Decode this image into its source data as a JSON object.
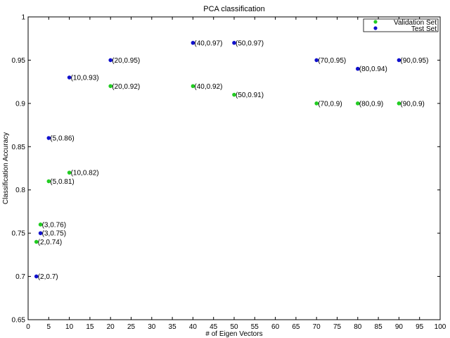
{
  "chart_data": {
    "type": "scatter",
    "title": "PCA classification",
    "xlabel": "# of Eigen Vectors",
    "ylabel": "Classification Accuracy",
    "xlim": [
      0,
      100
    ],
    "ylim": [
      0.65,
      1.0
    ],
    "xticks": [
      0,
      5,
      10,
      15,
      20,
      25,
      30,
      35,
      40,
      45,
      50,
      55,
      60,
      65,
      70,
      75,
      80,
      85,
      90,
      95,
      100
    ],
    "yticks": [
      0.65,
      0.7,
      0.75,
      0.8,
      0.85,
      0.9,
      0.95,
      1.0
    ],
    "ytick_labels": [
      "0.65",
      "0.7",
      "0.75",
      "0.8",
      "0.85",
      "0.9",
      "0.95",
      "1"
    ],
    "grid": false,
    "legend_position": "top-right",
    "series": [
      {
        "name": "Validation Set",
        "color": "#22cc22",
        "points": [
          {
            "x": 2,
            "y": 0.74,
            "label": "(2,0.74)"
          },
          {
            "x": 3,
            "y": 0.76,
            "label": "(3,0.76)"
          },
          {
            "x": 5,
            "y": 0.81,
            "label": "(5,0.81)"
          },
          {
            "x": 10,
            "y": 0.82,
            "label": "(10,0.82)"
          },
          {
            "x": 20,
            "y": 0.92,
            "label": "(20,0.92)"
          },
          {
            "x": 40,
            "y": 0.92,
            "label": "(40,0.92)"
          },
          {
            "x": 50,
            "y": 0.91,
            "label": "(50,0.91)"
          },
          {
            "x": 70,
            "y": 0.9,
            "label": "(70,0.9)"
          },
          {
            "x": 80,
            "y": 0.9,
            "label": "(80,0.9)"
          },
          {
            "x": 90,
            "y": 0.9,
            "label": "(90,0.9)"
          }
        ]
      },
      {
        "name": "Test Set",
        "color": "#1010cc",
        "points": [
          {
            "x": 2,
            "y": 0.7,
            "label": "(2,0.7)"
          },
          {
            "x": 3,
            "y": 0.75,
            "label": "(3,0.75)"
          },
          {
            "x": 5,
            "y": 0.86,
            "label": "(5,0.86)"
          },
          {
            "x": 10,
            "y": 0.93,
            "label": "(10,0.93)"
          },
          {
            "x": 20,
            "y": 0.95,
            "label": "(20,0.95)"
          },
          {
            "x": 40,
            "y": 0.97,
            "label": "(40,0.97)"
          },
          {
            "x": 50,
            "y": 0.97,
            "label": "(50,0.97)"
          },
          {
            "x": 70,
            "y": 0.95,
            "label": "(70,0.95)"
          },
          {
            "x": 80,
            "y": 0.94,
            "label": "(80,0.94)"
          },
          {
            "x": 90,
            "y": 0.95,
            "label": "(90,0.95)"
          }
        ]
      }
    ]
  }
}
